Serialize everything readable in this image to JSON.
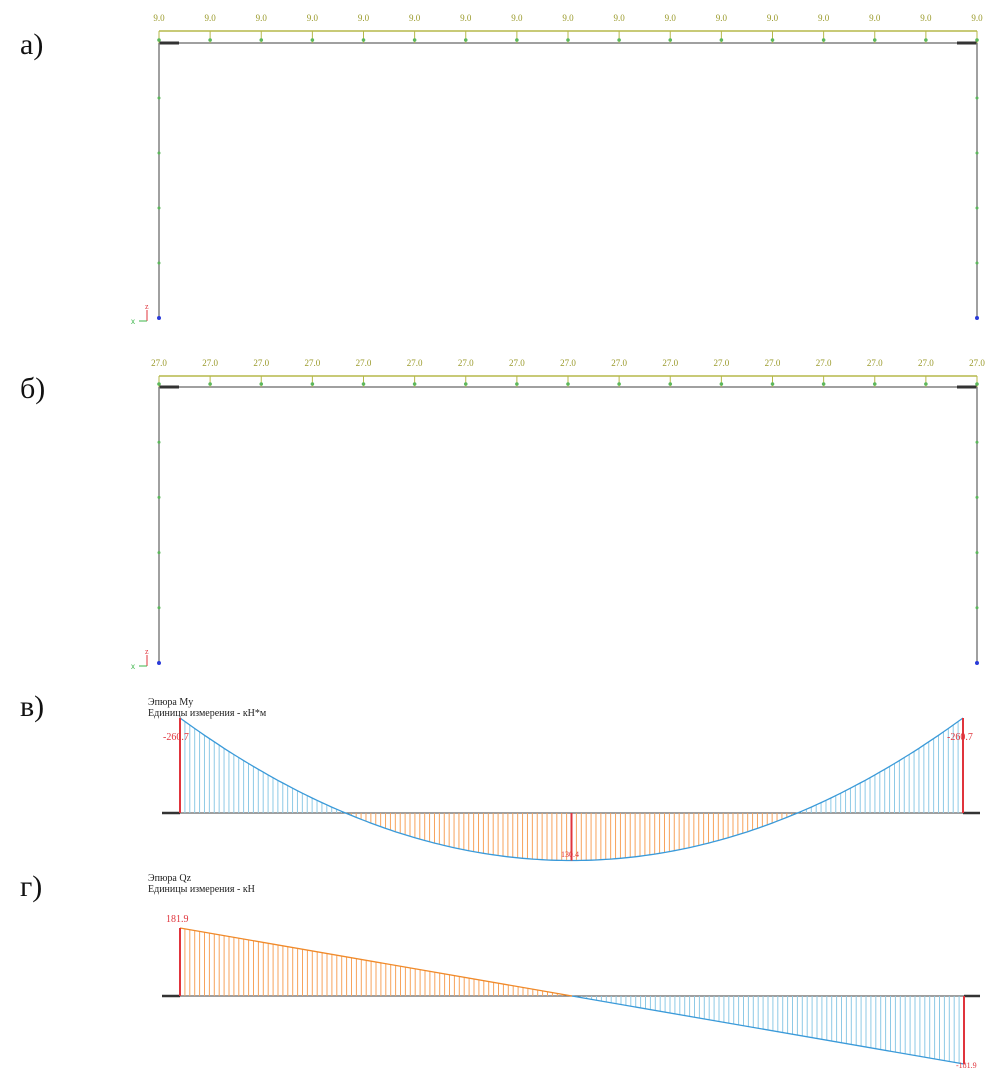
{
  "panels": {
    "a": {
      "label": "а)",
      "load_label": "9.0",
      "node_count": 17,
      "axes": {
        "z": "z",
        "x": "x"
      }
    },
    "b": {
      "label": "б)",
      "load_label": "27.0",
      "node_count": 17,
      "axes": {
        "z": "z",
        "x": "x"
      }
    },
    "v": {
      "label": "в)",
      "title": "Эпюра My",
      "units": "Единицы измерения - кН*м",
      "left_value": "-260.7",
      "right_value": "-260.7",
      "mid_value": "130.4"
    },
    "g": {
      "label": "г)",
      "title": "Эпюра Qz",
      "units": "Единицы измерения - кН",
      "left_value": "181.9",
      "right_value": "-181.9"
    }
  },
  "colors": {
    "frame": "#808080",
    "load_line": "#b5b84a",
    "node": "#5cb85c",
    "positive_fill": "#f7a35c",
    "positive_stroke": "#f08a2a",
    "negative_fill": "#8ecae6",
    "negative_stroke": "#3a9ad9",
    "extreme": "#e0343c"
  },
  "chart_data": [
    {
      "type": "line",
      "title": "Эпюра My",
      "ylabel": "Единицы измерения - кН*м",
      "x": [
        0,
        0.5,
        1
      ],
      "series": [
        {
          "values": [
            -260.7,
            130.4,
            -260.7
          ]
        }
      ]
    },
    {
      "type": "line",
      "title": "Эпюра Qz",
      "ylabel": "Единицы измерения - кН",
      "x": [
        0,
        1
      ],
      "series": [
        {
          "values": [
            181.9,
            -181.9
          ]
        }
      ]
    }
  ]
}
